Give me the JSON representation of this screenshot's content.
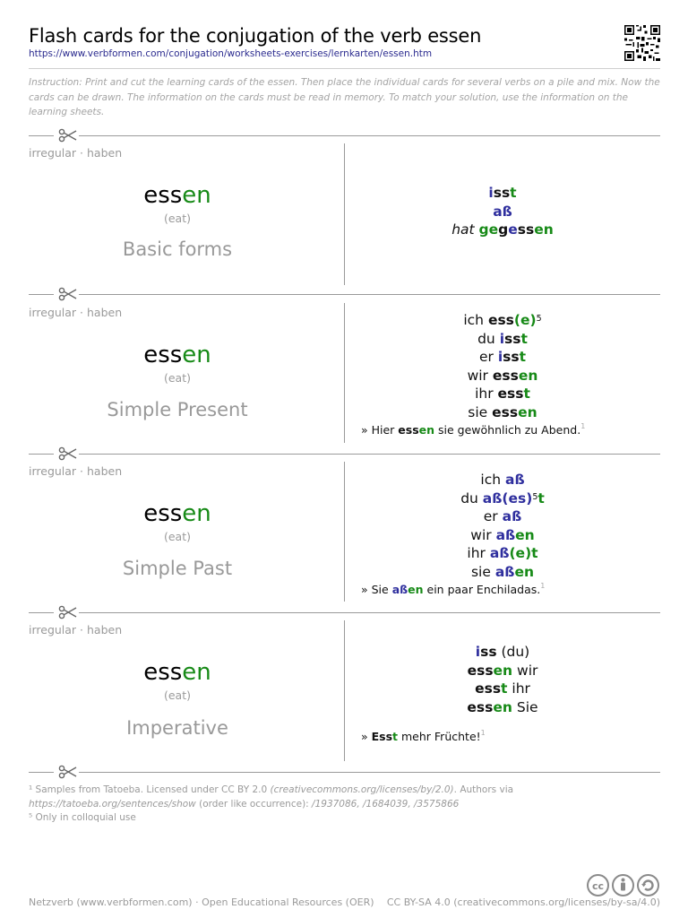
{
  "header": {
    "title": "Flash cards for the conjugation of the verb essen",
    "url": "https://www.verbformen.com/conjugation/worksheets-exercises/lernkarten/essen.htm",
    "instruction": "Instruction: Print and cut the learning cards of the essen. Then place the individual cards for several verbs on a pile and mix. Now the cards can be drawn. The information on the cards must be read in memory. To match your solution, use the information on the learning sheets."
  },
  "cards": [
    {
      "meta": "irregular · haben",
      "verb_stem": "ess",
      "verb_ending": "en",
      "translation": "(eat)",
      "form": "Basic forms",
      "lines": [
        [
          {
            "t": "i",
            "c": "b"
          },
          {
            "t": "ss"
          },
          {
            "t": "t",
            "c": "g"
          }
        ],
        [
          {
            "t": "aß",
            "c": "b"
          }
        ],
        [
          {
            "t": "hat ",
            "i": true
          },
          {
            "t": "ge",
            "c": "g"
          },
          {
            "t": "g"
          },
          {
            "t": "e",
            "c": "b"
          },
          {
            "t": "ss"
          },
          {
            "t": "en",
            "c": "g"
          }
        ]
      ]
    },
    {
      "meta": "irregular · haben",
      "verb_stem": "ess",
      "verb_ending": "en",
      "translation": "(eat)",
      "form": "Simple Present",
      "lines": [
        [
          {
            "t": "ich "
          },
          {
            "t": "ess"
          },
          {
            "t": "(e)",
            "c": "g"
          },
          {
            "t": "5",
            "sup": true
          }
        ],
        [
          {
            "t": "du "
          },
          {
            "t": "i",
            "c": "b"
          },
          {
            "t": "ss"
          },
          {
            "t": "t",
            "c": "g"
          }
        ],
        [
          {
            "t": "er "
          },
          {
            "t": "i",
            "c": "b"
          },
          {
            "t": "ss"
          },
          {
            "t": "t",
            "c": "g"
          }
        ],
        [
          {
            "t": "wir "
          },
          {
            "t": "ess"
          },
          {
            "t": "en",
            "c": "g"
          }
        ],
        [
          {
            "t": "ihr "
          },
          {
            "t": "ess"
          },
          {
            "t": "t",
            "c": "g"
          }
        ],
        [
          {
            "t": "sie "
          },
          {
            "t": "ess"
          },
          {
            "t": "en",
            "c": "g"
          }
        ]
      ],
      "example": [
        {
          "t": "» Hier "
        },
        {
          "t": "ess"
        },
        {
          "t": "en",
          "c": "g"
        },
        {
          "t": " sie gewöhnlich zu Abend."
        },
        {
          "t": "1",
          "sup": true
        }
      ]
    },
    {
      "meta": "irregular · haben",
      "verb_stem": "ess",
      "verb_ending": "en",
      "translation": "(eat)",
      "form": "Simple Past",
      "lines": [
        [
          {
            "t": "ich "
          },
          {
            "t": "aß",
            "c": "b"
          }
        ],
        [
          {
            "t": "du "
          },
          {
            "t": "aß",
            "c": "b"
          },
          {
            "t": "(es)",
            "c": "b"
          },
          {
            "t": "5",
            "sup": true
          },
          {
            "t": "t",
            "c": "g"
          }
        ],
        [
          {
            "t": "er "
          },
          {
            "t": "aß",
            "c": "b"
          }
        ],
        [
          {
            "t": "wir "
          },
          {
            "t": "aß",
            "c": "b"
          },
          {
            "t": "en",
            "c": "g"
          }
        ],
        [
          {
            "t": "ihr "
          },
          {
            "t": "aß",
            "c": "b"
          },
          {
            "t": "(e)",
            "c": "g"
          },
          {
            "t": "t",
            "c": "g"
          }
        ],
        [
          {
            "t": "sie "
          },
          {
            "t": "aß",
            "c": "b"
          },
          {
            "t": "en",
            "c": "g"
          }
        ]
      ],
      "example": [
        {
          "t": "» Sie "
        },
        {
          "t": "aß",
          "c": "b"
        },
        {
          "t": "en",
          "c": "g"
        },
        {
          "t": " ein paar Enchiladas."
        },
        {
          "t": "1",
          "sup": true
        }
      ]
    },
    {
      "meta": "irregular · haben",
      "verb_stem": "ess",
      "verb_ending": "en",
      "translation": "(eat)",
      "form": "Imperative",
      "lines": [
        [
          {
            "t": "i",
            "c": "b"
          },
          {
            "t": "ss"
          },
          {
            "t": " (du)",
            "plain": true
          }
        ],
        [
          {
            "t": "ess"
          },
          {
            "t": "en",
            "c": "g"
          },
          {
            "t": " wir",
            "plain": true
          }
        ],
        [
          {
            "t": "ess"
          },
          {
            "t": "t",
            "c": "g"
          },
          {
            "t": " ihr",
            "plain": true
          }
        ],
        [
          {
            "t": "ess"
          },
          {
            "t": "en",
            "c": "g"
          },
          {
            "t": " Sie",
            "plain": true
          }
        ]
      ],
      "example": [
        {
          "t": "» "
        },
        {
          "t": "Ess"
        },
        {
          "t": "t",
          "c": "g"
        },
        {
          "t": " mehr Früchte!"
        },
        {
          "t": "1",
          "sup": true
        }
      ]
    }
  ],
  "footnotes": {
    "fn1_a": "¹ Samples from Tatoeba. Licensed under CC BY 2.0 ",
    "fn1_b": "(creativecommons.org/licenses/by/2.0)",
    "fn1_c": ". Authors via",
    "fn1_d": "https://tatoeba.org/sentences/show",
    "fn1_e": " (order like occurrence): ",
    "fn1_f": "/1937086, /1684039, /3575866",
    "fn5": "⁵ Only in colloquial use"
  },
  "bottom": {
    "left": "Netzverb (www.verbformen.com) · Open Educational Resources (OER)",
    "right": "CC BY-SA 4.0 (creativecommons.org/licenses/by-sa/4.0)"
  },
  "icons": {
    "qr": "qr-code-icon",
    "scissors": "scissors-icon",
    "license": "cc-by-sa-icon"
  }
}
